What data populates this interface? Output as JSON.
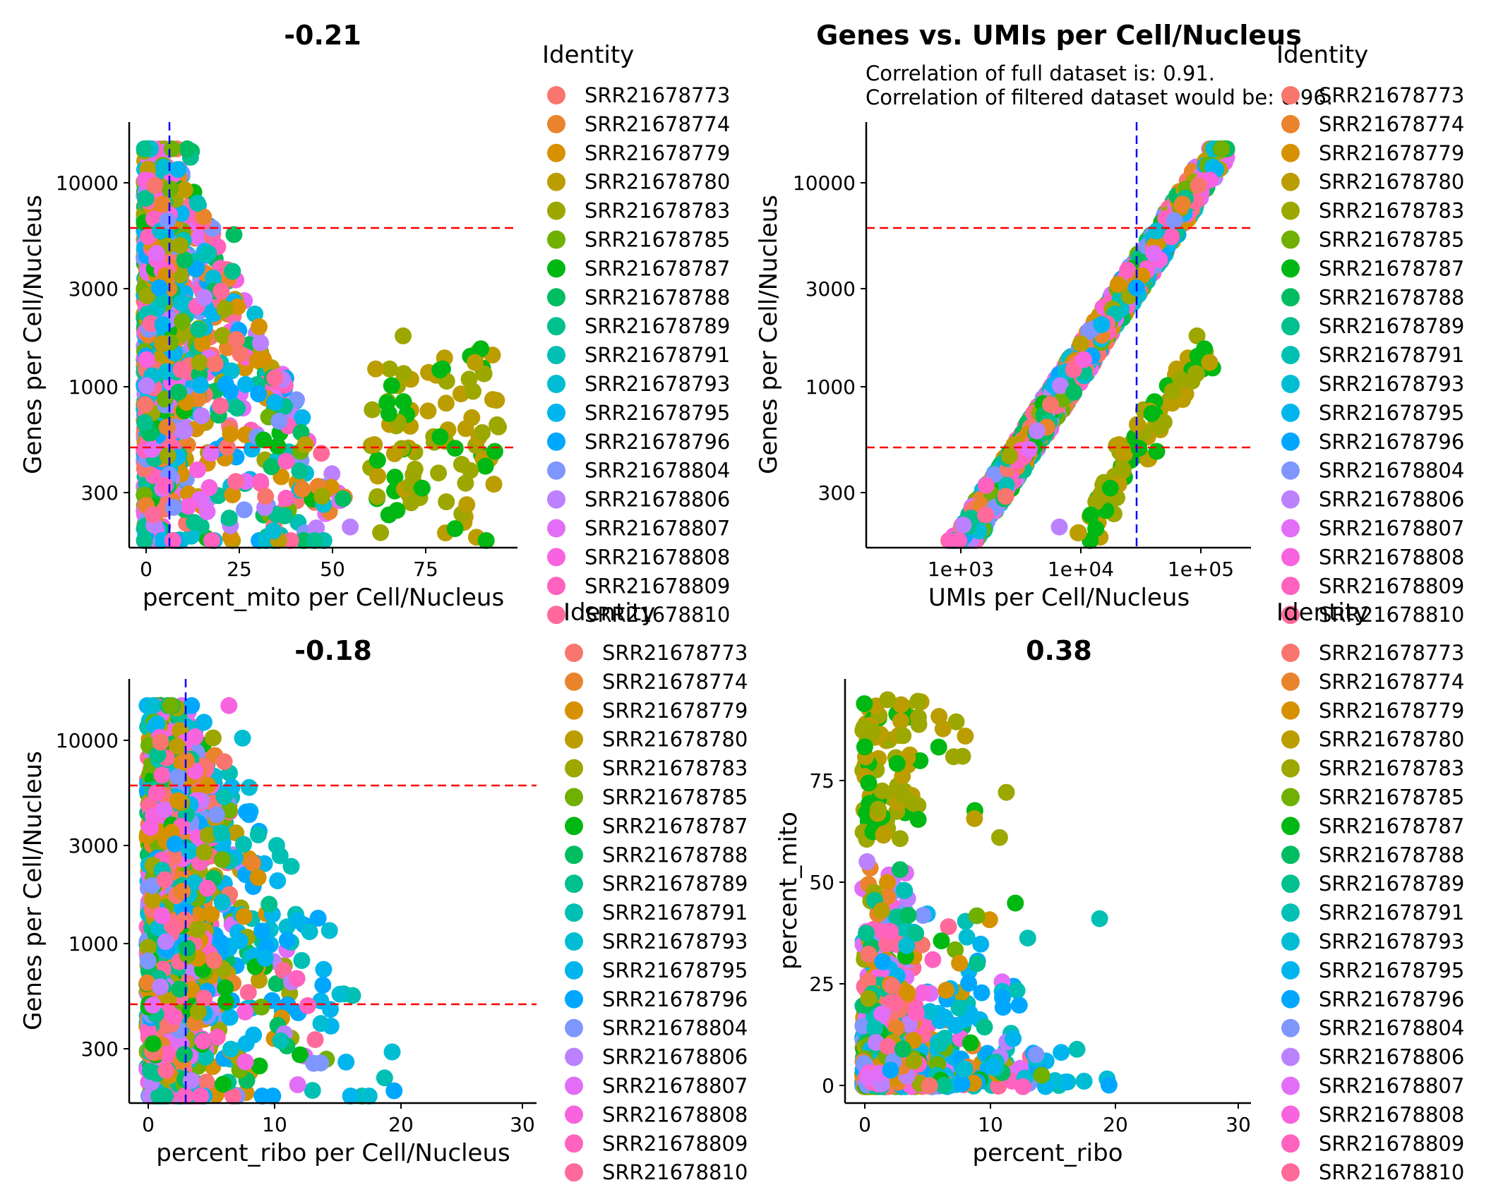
{
  "identities": [
    "SRR21678773",
    "SRR21678774",
    "SRR21678779",
    "SRR21678780",
    "SRR21678783",
    "SRR21678785",
    "SRR21678787",
    "SRR21678788",
    "SRR21678789",
    "SRR21678791",
    "SRR21678793",
    "SRR21678795",
    "SRR21678796",
    "SRR21678804",
    "SRR21678806",
    "SRR21678807",
    "SRR21678808",
    "SRR21678809",
    "SRR21678810"
  ],
  "identity_colors": [
    "#F8766D",
    "#E9842C",
    "#D69100",
    "#BC9D00",
    "#9CA700",
    "#6FB000",
    "#00B813",
    "#00BD61",
    "#00C08E",
    "#00C0B4",
    "#00BDD4",
    "#00B5EE",
    "#00A7FF",
    "#7F96FF",
    "#BC81FF",
    "#E26EF7",
    "#F863DF",
    "#FF62BF",
    "#FF6A9A"
  ],
  "chart_data": [
    {
      "type": "scatter",
      "title": "-0.21",
      "xlabel": "percent_mito per Cell/Nucleus",
      "ylabel": "Genes per Cell/Nucleus",
      "y_scale": "log10",
      "x_ticks": [
        0,
        25,
        50,
        75
      ],
      "y_ticks": [
        300,
        1000,
        3000,
        10000
      ],
      "xlim": [
        -4,
        100
      ],
      "ylim": [
        170,
        19000
      ],
      "hlines": [
        500,
        6000
      ],
      "vline": 6,
      "legend_title": "Identity",
      "legend_position": "right"
    },
    {
      "type": "scatter",
      "title": "Genes vs. UMIs per Cell/Nucleus",
      "subtitle": [
        "Correlation of full dataset is: 0.91.",
        "Correlation of filtered dataset would be: 0.96."
      ],
      "xlabel": "UMIs per Cell/Nucleus",
      "ylabel": "Genes per Cell/Nucleus",
      "x_scale": "log10",
      "y_scale": "log10",
      "x_ticks": [
        1000,
        10000,
        100000
      ],
      "x_tick_labels": [
        "1e+03",
        "1e+04",
        "1e+05"
      ],
      "y_ticks": [
        300,
        1000,
        3000,
        10000
      ],
      "xlim": [
        120,
        330000
      ],
      "ylim": [
        170,
        19000
      ],
      "hlines": [
        500,
        6000
      ],
      "vline": 30000,
      "legend_title": "Identity",
      "legend_position": "right"
    },
    {
      "type": "scatter",
      "title": "-0.18",
      "xlabel": "percent_ribo per Cell/Nucleus",
      "ylabel": "Genes per Cell/Nucleus",
      "y_scale": "log10",
      "x_ticks": [
        0,
        10,
        20,
        30
      ],
      "y_ticks": [
        300,
        1000,
        3000,
        10000
      ],
      "xlim": [
        -1.4,
        30.8
      ],
      "ylim": [
        170,
        19000
      ],
      "hlines": [
        500,
        6000
      ],
      "vline": 3,
      "legend_title": "Identity",
      "legend_position": "right"
    },
    {
      "type": "scatter",
      "title": "0.38",
      "xlabel": "percent_ribo",
      "ylabel": "percent_mito",
      "x_ticks": [
        0,
        10,
        20,
        30
      ],
      "y_ticks": [
        0,
        25,
        50,
        75
      ],
      "xlim": [
        -1.4,
        30.8
      ],
      "ylim": [
        -4,
        100
      ],
      "legend_title": "Identity",
      "legend_position": "right"
    }
  ]
}
